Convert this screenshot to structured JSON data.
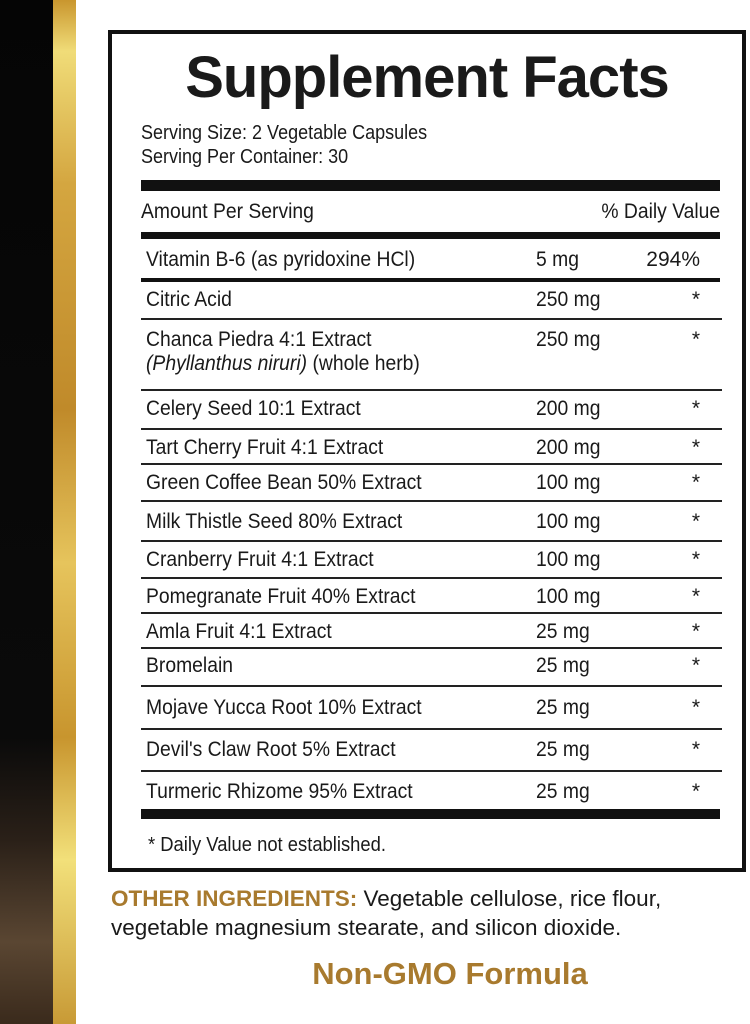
{
  "title": "Supplement Facts",
  "serving_size": "Serving Size: 2 Vegetable Capsules",
  "servings_per_container": "Serving Per Container: 30",
  "header": {
    "amount": "Amount Per Serving",
    "dv": "% Daily Value"
  },
  "rows": [
    {
      "name": "Vitamin B-6 (as pyridoxine HCl)",
      "amount": "5 mg",
      "dv": "294%"
    },
    {
      "name": "Citric Acid",
      "amount": "250 mg",
      "dv": "*"
    },
    {
      "name": "Chanca Piedra 4:1 Extract",
      "latin": "(Phyllanthus niruri)",
      "note": " (whole herb)",
      "amount": "250 mg",
      "dv": "*"
    },
    {
      "name": "Celery Seed 10:1 Extract",
      "amount": "200 mg",
      "dv": "*"
    },
    {
      "name": "Tart Cherry Fruit 4:1 Extract",
      "amount": "200 mg",
      "dv": "*"
    },
    {
      "name": "Green Coffee Bean 50% Extract",
      "amount": "100 mg",
      "dv": "*"
    },
    {
      "name": "Milk Thistle Seed 80% Extract",
      "amount": "100 mg",
      "dv": "*"
    },
    {
      "name": "Cranberry Fruit 4:1 Extract",
      "amount": "100 mg",
      "dv": "*"
    },
    {
      "name": "Pomegranate Fruit 40% Extract",
      "amount": "100 mg",
      "dv": "*"
    },
    {
      "name": "Amla Fruit 4:1 Extract",
      "amount": "25 mg",
      "dv": "*"
    },
    {
      "name": "Bromelain",
      "amount": "25 mg",
      "dv": "*"
    },
    {
      "name": "Mojave Yucca Root 10% Extract",
      "amount": "25 mg",
      "dv": "*"
    },
    {
      "name": "Devil's Claw Root 5% Extract",
      "amount": "25 mg",
      "dv": "*"
    },
    {
      "name": "Turmeric Rhizome 95% Extract",
      "amount": "25 mg",
      "dv": "*"
    }
  ],
  "footnote": "* Daily Value not established.",
  "other_ingredients": {
    "label": "OTHER INGREDIENTS:",
    "text": " Vegetable cellulose, rice flour, vegetable magnesium stearate, and silicon dioxide."
  },
  "tagline": "Non-GMO Formula",
  "colors": {
    "gold_text": "#a87a2e",
    "border": "#111111"
  }
}
